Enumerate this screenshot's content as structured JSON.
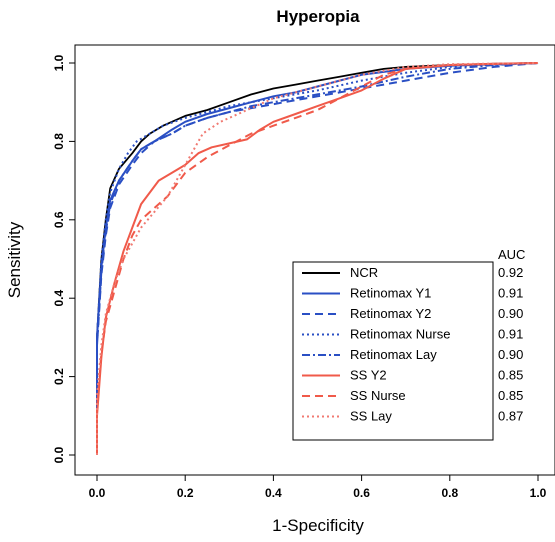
{
  "chart_data": {
    "type": "line",
    "title": "Hyperopia",
    "xlabel": "1-Specificity",
    "ylabel": "Sensitivity",
    "xlim": [
      0,
      1
    ],
    "ylim": [
      0,
      1
    ],
    "x_ticks": [
      0.0,
      0.2,
      0.4,
      0.6,
      0.8,
      1.0
    ],
    "y_ticks": [
      0.0,
      0.2,
      0.4,
      0.6,
      0.8,
      1.0
    ],
    "x_tick_labels": [
      "0.0",
      "0.2",
      "0.4",
      "0.6",
      "0.8",
      "1.0"
    ],
    "y_tick_labels": [
      "0.0",
      "0.2",
      "0.4",
      "0.6",
      "0.8",
      "1.0"
    ],
    "legend_position": "bottom-right",
    "auc_header": "AUC",
    "series": [
      {
        "name": "NCR",
        "auc": "0.92",
        "color": "#000000",
        "dash": "solid",
        "points": [
          [
            0,
            0
          ],
          [
            0,
            0.3
          ],
          [
            0.01,
            0.5
          ],
          [
            0.02,
            0.6
          ],
          [
            0.03,
            0.68
          ],
          [
            0.05,
            0.73
          ],
          [
            0.08,
            0.77
          ],
          [
            0.1,
            0.8
          ],
          [
            0.12,
            0.82
          ],
          [
            0.15,
            0.84
          ],
          [
            0.2,
            0.865
          ],
          [
            0.25,
            0.88
          ],
          [
            0.3,
            0.9
          ],
          [
            0.35,
            0.92
          ],
          [
            0.4,
            0.935
          ],
          [
            0.45,
            0.945
          ],
          [
            0.5,
            0.955
          ],
          [
            0.55,
            0.965
          ],
          [
            0.6,
            0.975
          ],
          [
            0.65,
            0.985
          ],
          [
            0.7,
            0.99
          ],
          [
            0.8,
            0.995
          ],
          [
            0.9,
            0.998
          ],
          [
            1,
            1
          ]
        ]
      },
      {
        "name": "Retinomax Y1",
        "auc": "0.91",
        "color": "#2a4fc4",
        "dash": "solid",
        "points": [
          [
            0,
            0
          ],
          [
            0,
            0.3
          ],
          [
            0.01,
            0.48
          ],
          [
            0.02,
            0.58
          ],
          [
            0.03,
            0.65
          ],
          [
            0.05,
            0.7
          ],
          [
            0.08,
            0.75
          ],
          [
            0.1,
            0.78
          ],
          [
            0.13,
            0.8
          ],
          [
            0.17,
            0.83
          ],
          [
            0.2,
            0.85
          ],
          [
            0.25,
            0.87
          ],
          [
            0.3,
            0.885
          ],
          [
            0.35,
            0.9
          ],
          [
            0.4,
            0.915
          ],
          [
            0.45,
            0.925
          ],
          [
            0.5,
            0.94
          ],
          [
            0.55,
            0.955
          ],
          [
            0.6,
            0.97
          ],
          [
            0.7,
            0.985
          ],
          [
            0.8,
            0.993
          ],
          [
            0.9,
            0.997
          ],
          [
            1,
            1
          ]
        ]
      },
      {
        "name": "Retinomax Y2",
        "auc": "0.90",
        "color": "#2a4fc4",
        "dash": "dashed",
        "points": [
          [
            0,
            0
          ],
          [
            0,
            0.28
          ],
          [
            0.01,
            0.46
          ],
          [
            0.02,
            0.56
          ],
          [
            0.03,
            0.63
          ],
          [
            0.05,
            0.69
          ],
          [
            0.08,
            0.74
          ],
          [
            0.1,
            0.77
          ],
          [
            0.13,
            0.8
          ],
          [
            0.17,
            0.82
          ],
          [
            0.2,
            0.84
          ],
          [
            0.25,
            0.86
          ],
          [
            0.3,
            0.875
          ],
          [
            0.35,
            0.885
          ],
          [
            0.4,
            0.895
          ],
          [
            0.45,
            0.905
          ],
          [
            0.5,
            0.915
          ],
          [
            0.55,
            0.925
          ],
          [
            0.6,
            0.935
          ],
          [
            0.65,
            0.945
          ],
          [
            0.7,
            0.955
          ],
          [
            0.75,
            0.965
          ],
          [
            0.8,
            0.975
          ],
          [
            0.9,
            0.99
          ],
          [
            1,
            1
          ]
        ]
      },
      {
        "name": "Retinomax Nurse",
        "auc": "0.91",
        "color": "#2a4fc4",
        "dash": "dotted",
        "points": [
          [
            0,
            0
          ],
          [
            0,
            0.3
          ],
          [
            0.01,
            0.5
          ],
          [
            0.02,
            0.6
          ],
          [
            0.03,
            0.67
          ],
          [
            0.05,
            0.73
          ],
          [
            0.07,
            0.77
          ],
          [
            0.09,
            0.8
          ],
          [
            0.12,
            0.82
          ],
          [
            0.15,
            0.84
          ],
          [
            0.2,
            0.86
          ],
          [
            0.25,
            0.875
          ],
          [
            0.3,
            0.89
          ],
          [
            0.35,
            0.9
          ],
          [
            0.4,
            0.91
          ],
          [
            0.5,
            0.93
          ],
          [
            0.6,
            0.955
          ],
          [
            0.7,
            0.975
          ],
          [
            0.8,
            0.99
          ],
          [
            0.9,
            0.996
          ],
          [
            1,
            1
          ]
        ]
      },
      {
        "name": "Retinomax Lay",
        "auc": "0.90",
        "color": "#2a4fc4",
        "dash": "dashdot",
        "points": [
          [
            0,
            0
          ],
          [
            0,
            0.28
          ],
          [
            0.01,
            0.47
          ],
          [
            0.02,
            0.57
          ],
          [
            0.03,
            0.64
          ],
          [
            0.05,
            0.7
          ],
          [
            0.08,
            0.75
          ],
          [
            0.1,
            0.78
          ],
          [
            0.13,
            0.8
          ],
          [
            0.17,
            0.82
          ],
          [
            0.2,
            0.84
          ],
          [
            0.25,
            0.86
          ],
          [
            0.3,
            0.875
          ],
          [
            0.35,
            0.89
          ],
          [
            0.4,
            0.9
          ],
          [
            0.5,
            0.92
          ],
          [
            0.6,
            0.94
          ],
          [
            0.7,
            0.965
          ],
          [
            0.8,
            0.985
          ],
          [
            0.9,
            0.995
          ],
          [
            1,
            1
          ]
        ]
      },
      {
        "name": "SS Y2",
        "auc": "0.85",
        "color": "#f05a4a",
        "dash": "solid",
        "points": [
          [
            0,
            0
          ],
          [
            0,
            0.1
          ],
          [
            0.01,
            0.25
          ],
          [
            0.02,
            0.35
          ],
          [
            0.04,
            0.44
          ],
          [
            0.06,
            0.52
          ],
          [
            0.08,
            0.58
          ],
          [
            0.1,
            0.64
          ],
          [
            0.12,
            0.67
          ],
          [
            0.14,
            0.7
          ],
          [
            0.17,
            0.72
          ],
          [
            0.2,
            0.74
          ],
          [
            0.23,
            0.77
          ],
          [
            0.26,
            0.785
          ],
          [
            0.3,
            0.795
          ],
          [
            0.34,
            0.805
          ],
          [
            0.37,
            0.83
          ],
          [
            0.4,
            0.85
          ],
          [
            0.45,
            0.87
          ],
          [
            0.5,
            0.89
          ],
          [
            0.55,
            0.91
          ],
          [
            0.6,
            0.93
          ],
          [
            0.65,
            0.96
          ],
          [
            0.7,
            0.985
          ],
          [
            0.8,
            0.995
          ],
          [
            0.9,
            0.998
          ],
          [
            1,
            1
          ]
        ]
      },
      {
        "name": "SS Nurse",
        "auc": "0.85",
        "color": "#f05a4a",
        "dash": "dashed",
        "points": [
          [
            0,
            0
          ],
          [
            0,
            0.12
          ],
          [
            0.01,
            0.26
          ],
          [
            0.02,
            0.34
          ],
          [
            0.04,
            0.42
          ],
          [
            0.06,
            0.5
          ],
          [
            0.08,
            0.56
          ],
          [
            0.1,
            0.6
          ],
          [
            0.13,
            0.63
          ],
          [
            0.16,
            0.66
          ],
          [
            0.2,
            0.72
          ],
          [
            0.25,
            0.76
          ],
          [
            0.3,
            0.79
          ],
          [
            0.35,
            0.82
          ],
          [
            0.4,
            0.84
          ],
          [
            0.45,
            0.86
          ],
          [
            0.5,
            0.88
          ],
          [
            0.55,
            0.91
          ],
          [
            0.6,
            0.94
          ],
          [
            0.65,
            0.97
          ],
          [
            0.7,
            0.985
          ],
          [
            0.8,
            0.995
          ],
          [
            1,
            1
          ]
        ]
      },
      {
        "name": "SS Lay",
        "auc": "0.87",
        "color": "#f07a72",
        "dash": "dotted",
        "points": [
          [
            0,
            0
          ],
          [
            0,
            0.15
          ],
          [
            0.01,
            0.28
          ],
          [
            0.02,
            0.36
          ],
          [
            0.04,
            0.44
          ],
          [
            0.06,
            0.5
          ],
          [
            0.08,
            0.54
          ],
          [
            0.1,
            0.58
          ],
          [
            0.13,
            0.62
          ],
          [
            0.16,
            0.66
          ],
          [
            0.19,
            0.72
          ],
          [
            0.22,
            0.78
          ],
          [
            0.24,
            0.82
          ],
          [
            0.28,
            0.85
          ],
          [
            0.32,
            0.87
          ],
          [
            0.36,
            0.89
          ],
          [
            0.4,
            0.91
          ],
          [
            0.5,
            0.94
          ],
          [
            0.6,
            0.97
          ],
          [
            0.7,
            0.99
          ],
          [
            0.8,
            0.997
          ],
          [
            1,
            1
          ]
        ]
      }
    ]
  }
}
